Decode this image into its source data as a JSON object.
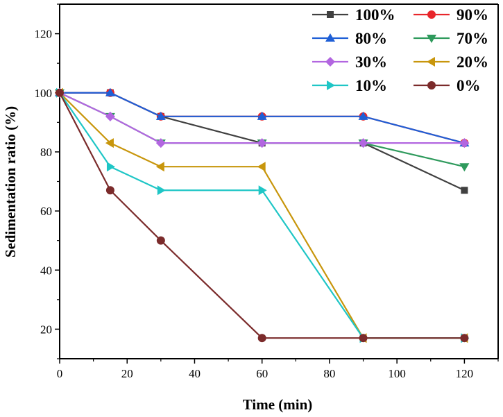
{
  "chart_data": {
    "type": "line",
    "xlabel": "Time (min)",
    "ylabel": "Sedimentation ratio (%)",
    "xlim": [
      0,
      130
    ],
    "ylim": [
      10,
      130
    ],
    "xticks": [
      0,
      20,
      40,
      60,
      80,
      100,
      120
    ],
    "yticks": [
      20,
      40,
      60,
      80,
      100,
      120
    ],
    "x": [
      0,
      15,
      30,
      60,
      90,
      120
    ],
    "grid": false,
    "legend_position": "top-right",
    "series": [
      {
        "name": "100%",
        "color": "#404040",
        "marker": "square",
        "values": [
          100,
          100,
          92,
          83,
          83,
          67
        ]
      },
      {
        "name": "90%",
        "color": "#e8262b",
        "marker": "circle",
        "values": [
          100,
          100,
          92,
          92,
          92,
          83
        ]
      },
      {
        "name": "80%",
        "color": "#1f5fd6",
        "marker": "triangle-up",
        "values": [
          100,
          100,
          92,
          92,
          92,
          83
        ]
      },
      {
        "name": "70%",
        "color": "#2e9a5c",
        "marker": "triangle-down",
        "values": [
          100,
          92,
          83,
          83,
          83,
          75
        ]
      },
      {
        "name": "30%",
        "color": "#b266e0",
        "marker": "diamond",
        "values": [
          100,
          92,
          83,
          83,
          83,
          83
        ]
      },
      {
        "name": "20%",
        "color": "#c8960c",
        "marker": "triangle-left",
        "values": [
          100,
          83,
          75,
          75,
          17,
          17
        ]
      },
      {
        "name": "10%",
        "color": "#1fc6c6",
        "marker": "triangle-right",
        "values": [
          100,
          75,
          67,
          67,
          17,
          17
        ]
      },
      {
        "name": "0%",
        "color": "#7b2b2b",
        "marker": "circle",
        "values": [
          100,
          67,
          50,
          17,
          17,
          17
        ]
      }
    ]
  }
}
